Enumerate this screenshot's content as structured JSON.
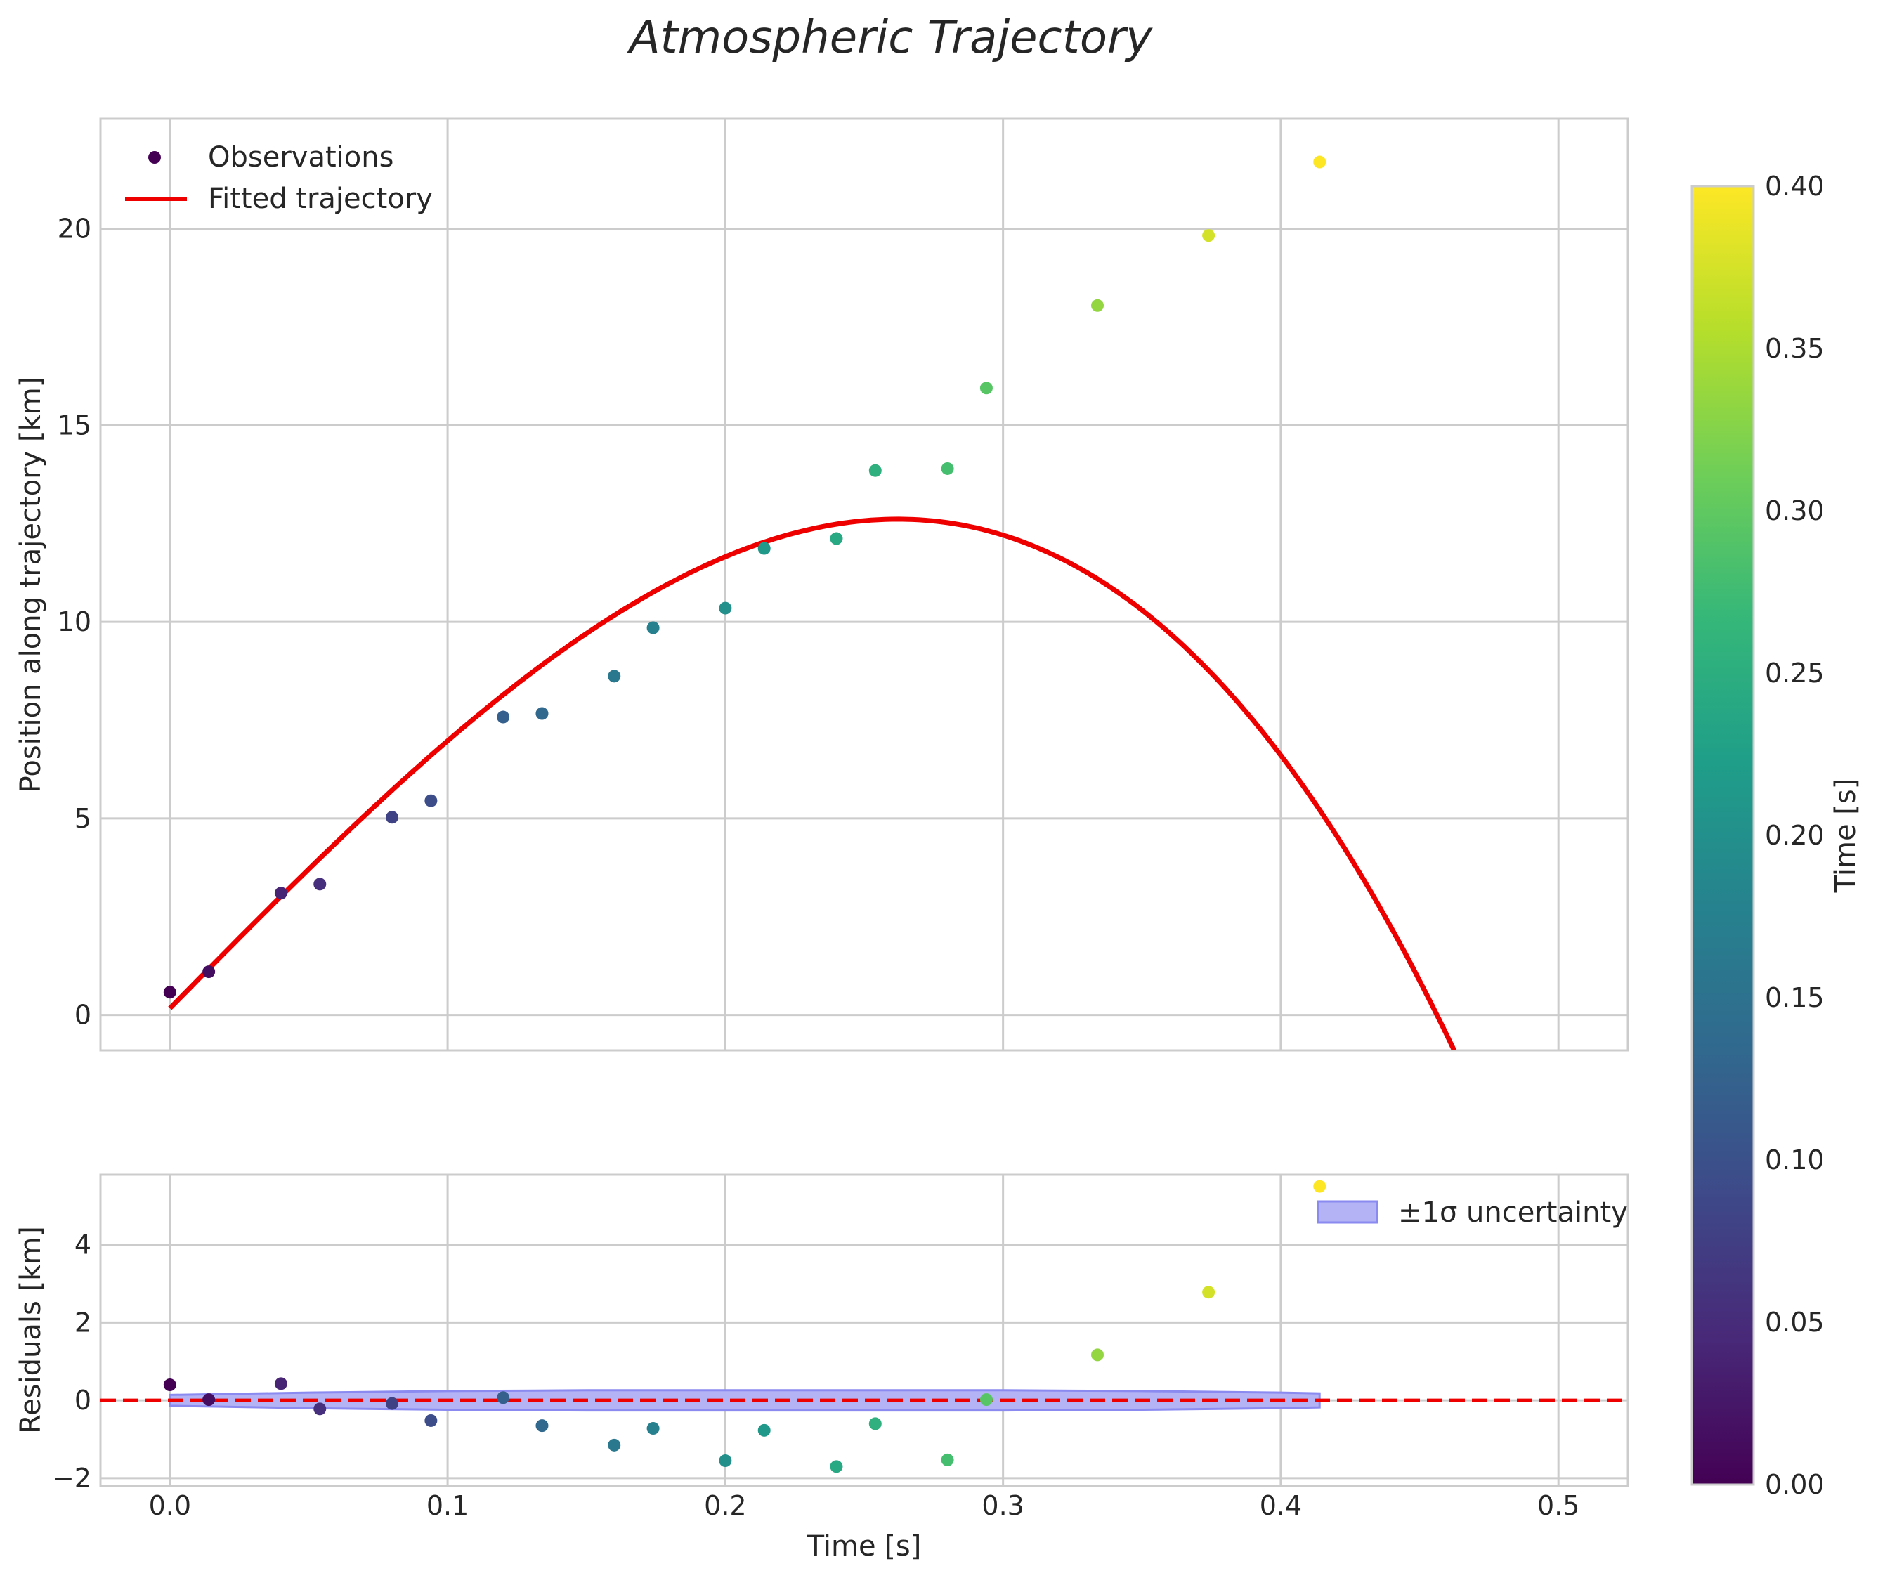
{
  "chart_data": {
    "type": "scatter",
    "title": "Atmospheric Trajectory",
    "colors": {
      "fit": "#ee0000",
      "band_fill": "#b3b3f5",
      "band_edge": "#8a8af0",
      "grid": "#cccccc",
      "spine": "#cccccc",
      "text": "#262626"
    },
    "top": {
      "ylabel": "Position along trajectory [km]",
      "xlim": [
        -0.025,
        0.525
      ],
      "ylim": [
        -0.9,
        22.8
      ],
      "yticks": [
        0,
        5,
        10,
        15,
        20
      ],
      "legend": {
        "position": "top-left",
        "entries": [
          "Observations",
          "Fitted trajectory"
        ]
      }
    },
    "bottom": {
      "ylabel": "Residuals [km]",
      "xlabel": "Time [s]",
      "xlim": [
        -0.025,
        0.525
      ],
      "ylim": [
        -2.2,
        5.8
      ],
      "yticks": [
        -2,
        0,
        2,
        4
      ],
      "xticks": [
        0.0,
        0.1,
        0.2,
        0.3,
        0.4,
        0.5
      ],
      "xticklabels": [
        "0.0",
        "0.1",
        "0.2",
        "0.3",
        "0.4",
        "0.5"
      ],
      "legend": {
        "position": "top-right",
        "entries": [
          "±1σ uncertainty"
        ]
      }
    },
    "colorbar": {
      "label": "Time [s]",
      "range": [
        0.0,
        0.4
      ],
      "ticks": [
        0.0,
        0.05,
        0.1,
        0.15,
        0.2,
        0.25,
        0.3,
        0.35,
        0.4
      ],
      "ticklabels": [
        "0.00",
        "0.05",
        "0.10",
        "0.15",
        "0.20",
        "0.25",
        "0.30",
        "0.35",
        "0.40"
      ],
      "colormap": "viridis"
    },
    "observations": {
      "time": [
        0.0,
        0.014,
        0.04,
        0.054,
        0.08,
        0.094,
        0.12,
        0.134,
        0.16,
        0.174,
        0.2,
        0.214,
        0.24,
        0.254,
        0.28,
        0.294,
        0.334,
        0.374,
        0.414
      ],
      "position": [
        0.58,
        1.1,
        3.1,
        3.33,
        5.03,
        5.45,
        7.58,
        7.67,
        8.62,
        9.85,
        10.35,
        11.87,
        12.12,
        13.85,
        13.9,
        15.95,
        18.05,
        19.83,
        21.7
      ],
      "residual": [
        0.4,
        0.02,
        0.43,
        -0.22,
        -0.08,
        -0.52,
        0.07,
        -0.65,
        -1.15,
        -0.72,
        -1.55,
        -0.77,
        -1.7,
        -0.6,
        -1.53,
        0.02,
        1.17,
        2.78,
        5.5
      ]
    },
    "fit": {
      "x_range": [
        0.0,
        0.5
      ],
      "coefficients_cubic": [
        0.17,
        71.92,
        -5.26,
        -335.75
      ]
    },
    "uncertainty_band": {
      "x": [
        0.0,
        0.05,
        0.1,
        0.15,
        0.2,
        0.25,
        0.3,
        0.35,
        0.4,
        0.414
      ],
      "half_width": [
        0.14,
        0.2,
        0.24,
        0.26,
        0.26,
        0.26,
        0.26,
        0.24,
        0.2,
        0.18
      ]
    }
  }
}
